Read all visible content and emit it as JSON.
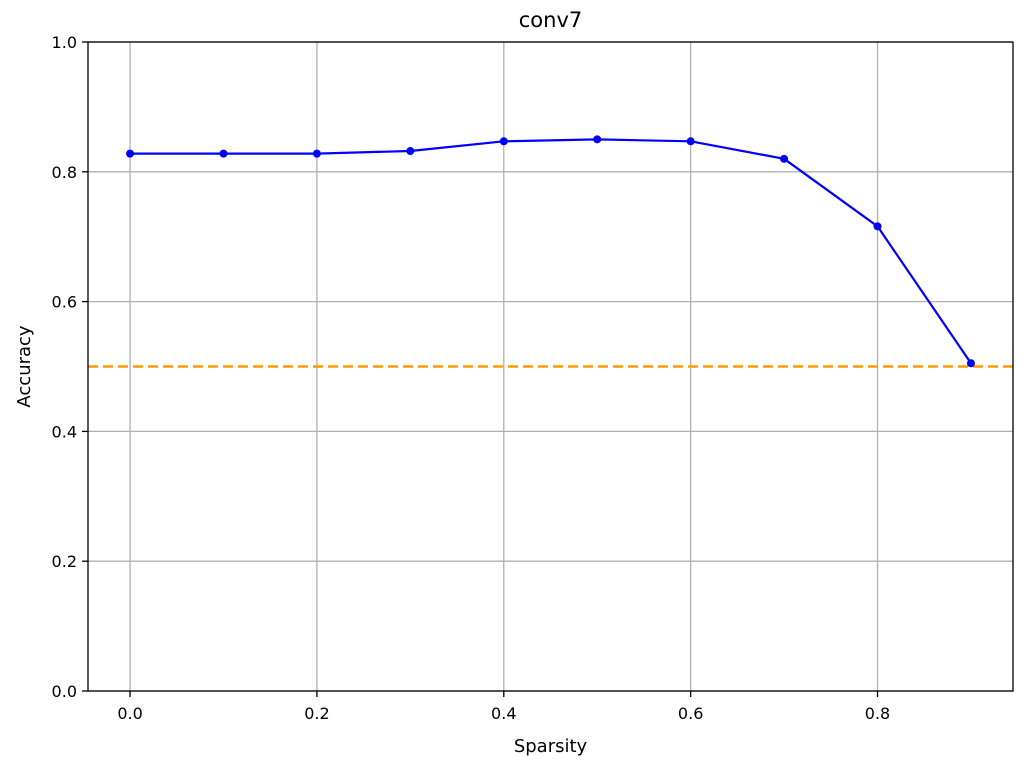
{
  "chart_data": {
    "type": "line",
    "title": "conv7",
    "xlabel": "Sparsity",
    "ylabel": "Accuracy",
    "xlim": [
      -0.045,
      0.945
    ],
    "ylim": [
      0.0,
      1.0
    ],
    "xticks": [
      "0.0",
      "0.2",
      "0.4",
      "0.6",
      "0.8"
    ],
    "yticks": [
      "0.0",
      "0.2",
      "0.4",
      "0.6",
      "0.8",
      "1.0"
    ],
    "grid": true,
    "series": [
      {
        "color": "#0000ff",
        "marker": "circle",
        "x": [
          0.0,
          0.1,
          0.2,
          0.3,
          0.4,
          0.5,
          0.6,
          0.7,
          0.8,
          0.9
        ],
        "y": [
          0.828,
          0.828,
          0.828,
          0.832,
          0.847,
          0.85,
          0.847,
          0.82,
          0.716,
          0.505
        ]
      }
    ],
    "reference_lines": [
      {
        "y": 0.5,
        "color": "#ff9900",
        "style": "dashed"
      }
    ]
  }
}
